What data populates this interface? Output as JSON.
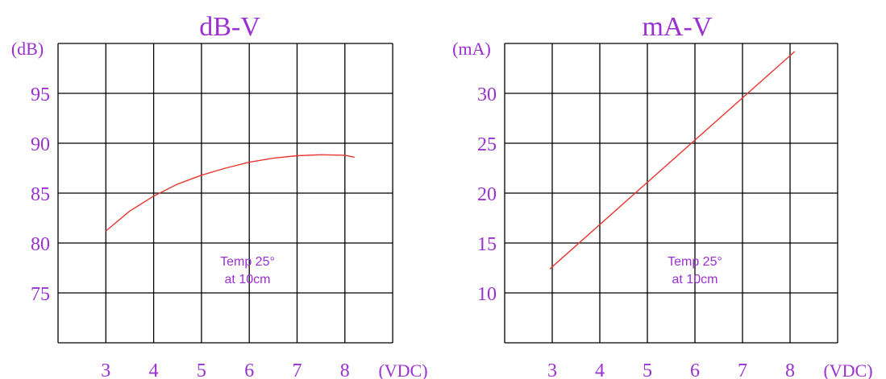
{
  "colors": {
    "text": "#9b30d0",
    "grid": "#000000",
    "line": "#e8372f",
    "background": "#ffffff"
  },
  "chart_data": [
    {
      "type": "line",
      "title": "dB-V",
      "yunit": "(dB)",
      "xunit": "(VDC)",
      "x_ticks": [
        "3",
        "4",
        "5",
        "6",
        "7",
        "8"
      ],
      "y_ticks": [
        "95",
        "90",
        "85",
        "80",
        "75"
      ],
      "xlim": [
        2,
        9
      ],
      "ylim": [
        70,
        100
      ],
      "grid": true,
      "annotation": [
        "Temp 25°",
        "at 10cm"
      ],
      "series": [
        {
          "x": [
            3,
            3.5,
            4,
            4.5,
            5,
            5.5,
            6,
            6.5,
            7,
            7.5,
            8,
            8.2
          ],
          "y": [
            81.2,
            83.2,
            84.7,
            85.9,
            86.8,
            87.5,
            88.1,
            88.5,
            88.75,
            88.85,
            88.8,
            88.6
          ]
        }
      ]
    },
    {
      "type": "line",
      "title": "mA-V",
      "yunit": "(mA)",
      "xunit": "(VDC)",
      "x_ticks": [
        "3",
        "4",
        "5",
        "6",
        "7",
        "8"
      ],
      "y_ticks": [
        "30",
        "25",
        "20",
        "15",
        "10"
      ],
      "xlim": [
        2,
        9
      ],
      "ylim": [
        5,
        35
      ],
      "grid": true,
      "annotation": [
        "Temp 25°",
        "at 10cm"
      ],
      "series": [
        {
          "x": [
            2.95,
            8.1
          ],
          "y": [
            12.4,
            34.2
          ]
        }
      ]
    }
  ]
}
